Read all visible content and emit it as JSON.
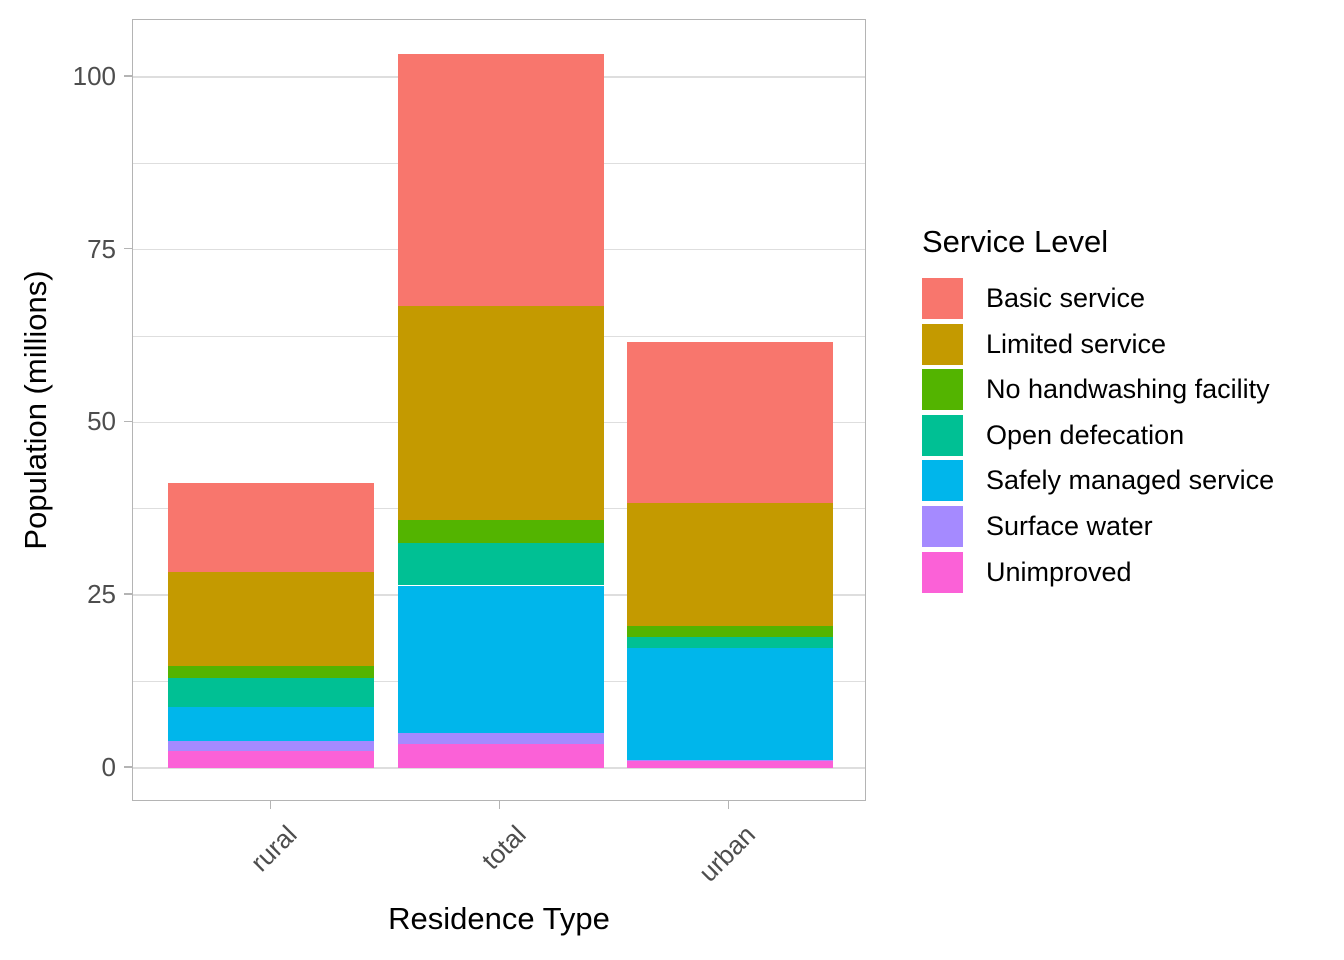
{
  "chart_data": {
    "type": "bar",
    "stacked": true,
    "orientation": "vertical",
    "title": "",
    "xlabel": "Residence Type",
    "ylabel": "Population (millions)",
    "categories": [
      "rural",
      "total",
      "urban"
    ],
    "y_ticks": [
      0,
      25,
      50,
      75,
      100
    ],
    "y_tick_labels": [
      "0",
      "25",
      "50",
      "75",
      "100"
    ],
    "minor_gridlines": [
      12.5,
      37.5,
      62.5,
      87.5
    ],
    "ylim": [
      0,
      108
    ],
    "grid": "on",
    "legend_position": "right",
    "legend_title": "Service Level",
    "stack_order_bottom_to_top": [
      "Unimproved",
      "Surface water",
      "Safely managed service",
      "Open defecation",
      "No handwashing facility",
      "Limited service",
      "Basic service"
    ],
    "series": [
      {
        "name": "Basic service",
        "color": "#F8766D",
        "values": [
          13.0,
          36.4,
          23.3
        ]
      },
      {
        "name": "Limited service",
        "color": "#C49A00",
        "values": [
          13.5,
          31.0,
          17.8
        ]
      },
      {
        "name": "No handwashing facility",
        "color": "#53B400",
        "values": [
          1.8,
          3.4,
          1.7
        ]
      },
      {
        "name": "Open defecation",
        "color": "#00C094",
        "values": [
          4.2,
          6.1,
          1.6
        ]
      },
      {
        "name": "Safely managed service",
        "color": "#00B6EB",
        "values": [
          4.9,
          21.4,
          16.2
        ]
      },
      {
        "name": "Surface water",
        "color": "#A58AFF",
        "values": [
          1.4,
          1.5,
          0.1
        ]
      },
      {
        "name": "Unimproved",
        "color": "#FB61D7",
        "values": [
          2.5,
          3.5,
          1.0
        ]
      }
    ],
    "bar_totals": [
      41.3,
      103.3,
      61.7
    ]
  },
  "style": {
    "background": "#FFFFFF",
    "panel_border_color": "#B4B4B4",
    "grid_color": "#DEDEDE",
    "tick_color": "#B4B4B4",
    "axis_text_color": "#4D4D4D",
    "title_color": "#000000"
  }
}
